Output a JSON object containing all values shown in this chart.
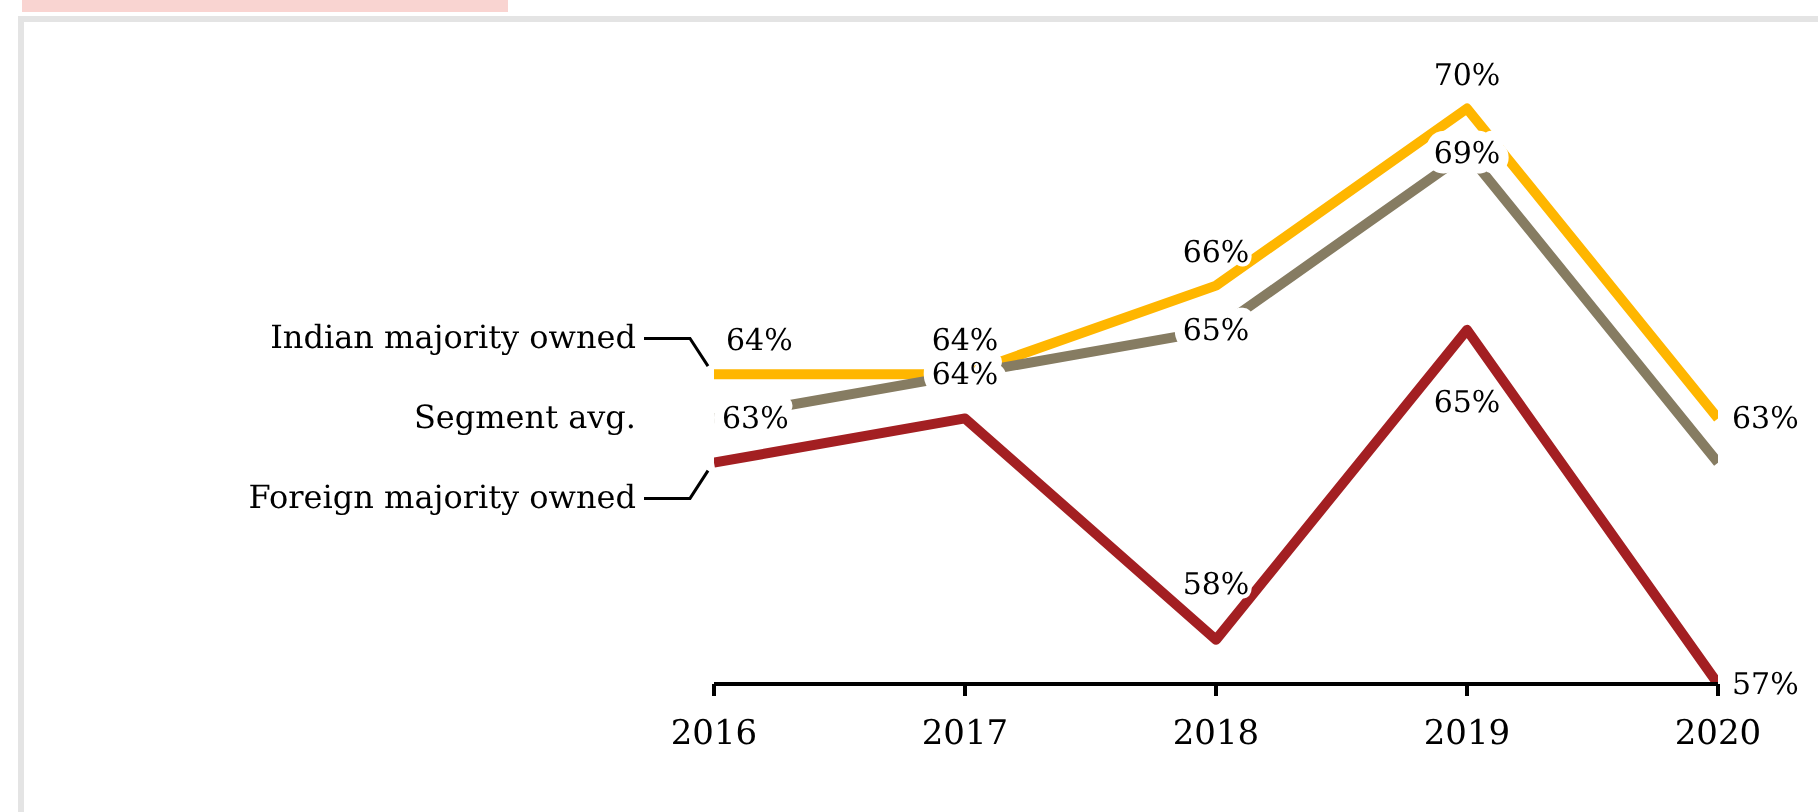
{
  "chart_data": {
    "type": "line",
    "categories": [
      "2016",
      "2017",
      "2018",
      "2019",
      "2020"
    ],
    "ylim": [
      57,
      72
    ],
    "series": [
      {
        "name": "Indian majority owned",
        "color": "#ffb600",
        "values": [
          64,
          64,
          66,
          70,
          63
        ],
        "value_labels": [
          "64%",
          "64%",
          "66%",
          "70%",
          "63%"
        ]
      },
      {
        "name": "Segment avg.",
        "color": "#867c62",
        "values": [
          63,
          64,
          65,
          69,
          62
        ],
        "value_labels": [
          "63%",
          "64%",
          "65%",
          "69%",
          null
        ]
      },
      {
        "name": "Foreign majority owned",
        "color": "#a31f22",
        "values": [
          62,
          63,
          58,
          65,
          57
        ],
        "value_labels": [
          null,
          null,
          "58%",
          "65%",
          "57%"
        ]
      }
    ]
  }
}
